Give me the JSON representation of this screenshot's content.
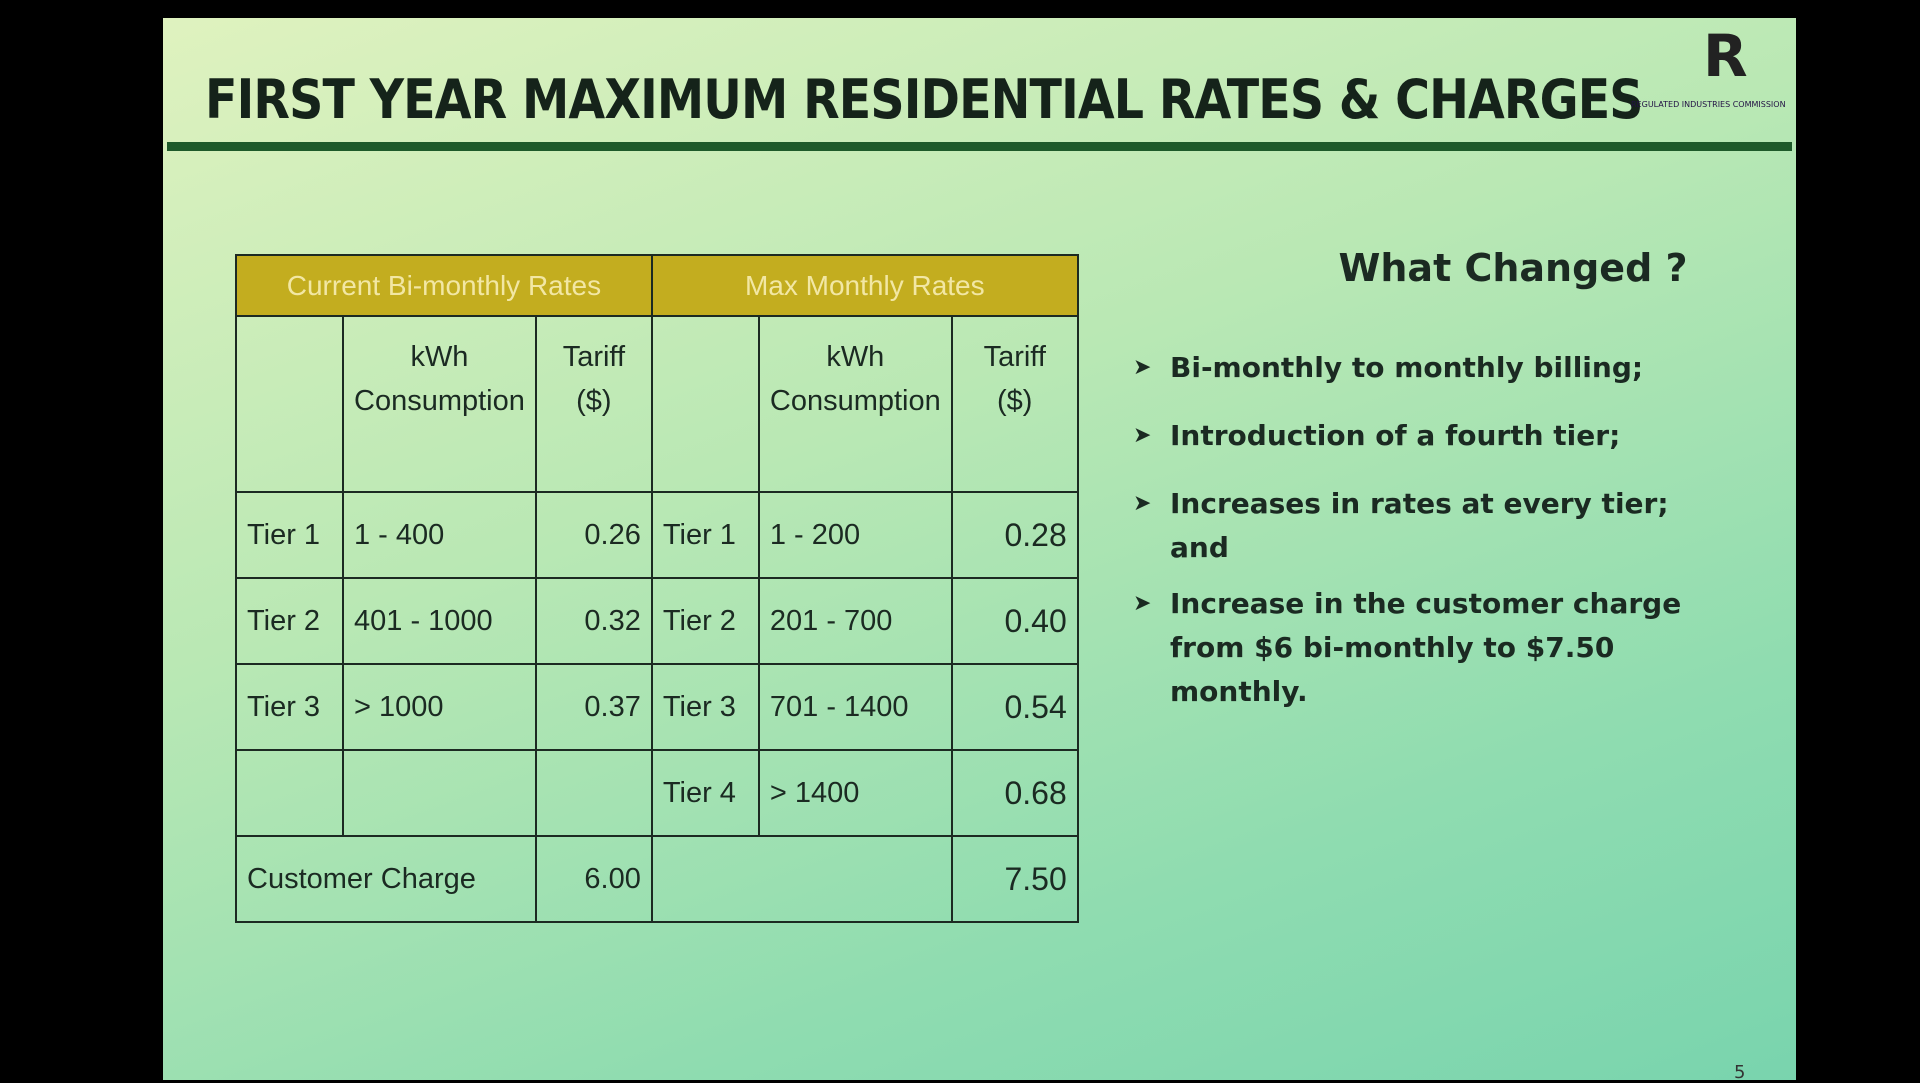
{
  "header": {
    "title": "FIRST YEAR MAXIMUM RESIDENTIAL RATES & CHARGES",
    "logo": "R",
    "logo_caption": "REGULATED INDUSTRIES COMMISSION"
  },
  "table": {
    "group_headers": [
      "Current Bi-monthly Rates",
      "Max Monthly Rates"
    ],
    "column_headers": {
      "current": [
        "kWh\nConsumption",
        "Tariff\n($)"
      ],
      "max": [
        "kWh\nConsumption",
        "Tariff\n($)"
      ]
    },
    "rows": [
      {
        "current": {
          "tier": "Tier 1",
          "kwh": "1 - 400",
          "tariff": "0.26"
        },
        "max": {
          "tier": "Tier 1",
          "kwh": "1 - 200",
          "tariff": "0.28"
        }
      },
      {
        "current": {
          "tier": "Tier 2",
          "kwh": "401 - 1000",
          "tariff": "0.32"
        },
        "max": {
          "tier": "Tier 2",
          "kwh": "201 - 700",
          "tariff": "0.40"
        }
      },
      {
        "current": {
          "tier": "Tier 3",
          "kwh": "> 1000",
          "tariff": "0.37"
        },
        "max": {
          "tier": "Tier 3",
          "kwh": "701 - 1400",
          "tariff": "0.54"
        }
      },
      {
        "max": {
          "tier": "Tier 4",
          "kwh": "> 1400",
          "tariff": "0.68"
        }
      }
    ],
    "customer_charge": {
      "label": "Customer Charge",
      "current": "6.00",
      "max": "7.50"
    }
  },
  "sidebar": {
    "heading": "What Changed ?",
    "bullets": [
      "Bi-monthly to monthly billing;",
      "Introduction of a fourth tier;",
      "Increases in rates at every tier; and",
      "Increase in the customer charge from $6 bi-monthly to $7.50 monthly."
    ]
  },
  "page_number": "5"
}
